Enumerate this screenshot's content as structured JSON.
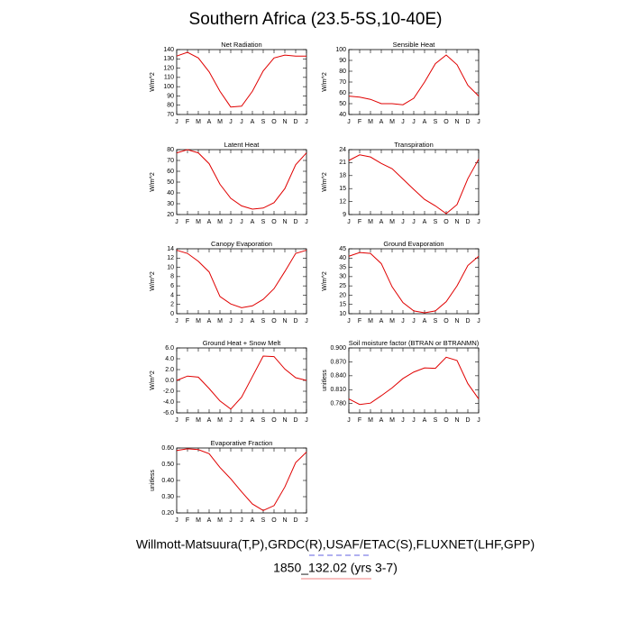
{
  "title": "Southern Africa (23.5-5S,10-40E)",
  "footer": [
    "Willmott-Matsuura(T,P),GRDC(R),USAF/ETAC(S),FLUXNET(LHF,GPP)",
    "1850_132.02 (yrs 3-7)"
  ],
  "chart_data": [
    {
      "type": "line",
      "title": "Net Radiation",
      "ylabel": "W/m^2",
      "color": "#e00000",
      "categories": [
        "J",
        "F",
        "M",
        "A",
        "M",
        "J",
        "J",
        "A",
        "S",
        "O",
        "N",
        "D",
        "J"
      ],
      "values": [
        133,
        137,
        131,
        116,
        95,
        78,
        79,
        95,
        117,
        131,
        134,
        133,
        133
      ],
      "ylim": [
        70,
        140
      ],
      "yticks": [
        70,
        80,
        90,
        100,
        110,
        120,
        130,
        140
      ]
    },
    {
      "type": "line",
      "title": "Sensible Heat",
      "ylabel": "W/m^2",
      "color": "#e00000",
      "categories": [
        "J",
        "F",
        "M",
        "A",
        "M",
        "J",
        "J",
        "A",
        "S",
        "O",
        "N",
        "D",
        "J"
      ],
      "values": [
        57,
        56,
        54,
        50,
        50,
        49,
        55,
        70,
        87,
        95,
        86,
        67,
        57
      ],
      "ylim": [
        40,
        100
      ],
      "yticks": [
        40,
        50,
        60,
        70,
        80,
        90,
        100
      ]
    },
    {
      "type": "line",
      "title": "Latent Heat",
      "ylabel": "W/m^2",
      "color": "#e00000",
      "categories": [
        "J",
        "F",
        "M",
        "A",
        "M",
        "J",
        "J",
        "A",
        "S",
        "O",
        "N",
        "D",
        "J"
      ],
      "values": [
        77,
        80,
        77,
        67,
        48,
        35,
        28,
        25,
        26,
        31,
        44,
        66,
        77
      ],
      "ylim": [
        20,
        80
      ],
      "yticks": [
        20,
        30,
        40,
        50,
        60,
        70,
        80
      ]
    },
    {
      "type": "line",
      "title": "Transpiration",
      "ylabel": "W/m^2",
      "color": "#e00000",
      "categories": [
        "J",
        "F",
        "M",
        "A",
        "M",
        "J",
        "J",
        "A",
        "S",
        "O",
        "N",
        "D",
        "J"
      ],
      "values": [
        21.5,
        22.8,
        22.3,
        20.8,
        19.6,
        17.2,
        14.8,
        12.5,
        11.0,
        9.2,
        11.3,
        17.3,
        21.8
      ],
      "ylim": [
        9,
        24
      ],
      "yticks": [
        9,
        12,
        15,
        18,
        21,
        24
      ]
    },
    {
      "type": "line",
      "title": "Canopy Evaporation",
      "ylabel": "W/m^2",
      "color": "#e00000",
      "categories": [
        "J",
        "F",
        "M",
        "A",
        "M",
        "J",
        "J",
        "A",
        "S",
        "O",
        "N",
        "D",
        "J"
      ],
      "values": [
        13.7,
        13,
        11.3,
        9,
        3.7,
        2.1,
        1.3,
        1.7,
        3.1,
        5.4,
        9.1,
        13,
        13.7
      ],
      "ylim": [
        0,
        14
      ],
      "yticks": [
        0,
        2,
        4,
        6,
        8,
        10,
        12,
        14
      ]
    },
    {
      "type": "line",
      "title": "Ground Evaporation",
      "ylabel": "W/m^2",
      "color": "#e00000",
      "categories": [
        "J",
        "F",
        "M",
        "A",
        "M",
        "J",
        "J",
        "A",
        "S",
        "O",
        "N",
        "D",
        "J"
      ],
      "values": [
        41,
        43,
        42.5,
        37,
        24.5,
        16,
        11.5,
        10.5,
        11.5,
        16.5,
        25,
        36,
        41
      ],
      "ylim": [
        10,
        45
      ],
      "yticks": [
        10,
        15,
        20,
        25,
        30,
        35,
        40,
        45
      ]
    },
    {
      "type": "line",
      "title": "Ground Heat + Snow Melt",
      "ylabel": "W/m^2",
      "color": "#e00000",
      "categories": [
        "J",
        "F",
        "M",
        "A",
        "M",
        "J",
        "J",
        "A",
        "S",
        "O",
        "N",
        "D",
        "J"
      ],
      "values": [
        0,
        0.8,
        0.6,
        -1.5,
        -3.8,
        -5.3,
        -3.1,
        0.7,
        4.5,
        4.4,
        2.1,
        0.5,
        0
      ],
      "ylim": [
        -6,
        6
      ],
      "yticks": [
        {
          "value": -6,
          "label": "-6.0"
        },
        {
          "value": -4,
          "label": "-4.0"
        },
        {
          "value": -2,
          "label": "-2.0"
        },
        {
          "value": 0,
          "label": "0.0"
        },
        {
          "value": 2,
          "label": "2.0"
        },
        {
          "value": 4,
          "label": "4.0"
        },
        {
          "value": 6,
          "label": "6.0"
        }
      ]
    },
    {
      "type": "line",
      "title": "Soil moisture factor (BTRAN or BTRANMN)",
      "ylabel": "unitless",
      "color": "#e00000",
      "categories": [
        "J",
        "F",
        "M",
        "A",
        "M",
        "J",
        "J",
        "A",
        "S",
        "O",
        "N",
        "D",
        "J"
      ],
      "values": [
        0.79,
        0.778,
        0.781,
        0.797,
        0.814,
        0.834,
        0.848,
        0.857,
        0.856,
        0.88,
        0.873,
        0.823,
        0.79
      ],
      "ylim": [
        0.76,
        0.9
      ],
      "yticks": [
        {
          "value": 0.78,
          "label": "0.780"
        },
        {
          "value": 0.81,
          "label": "0.810"
        },
        {
          "value": 0.84,
          "label": "0.840"
        },
        {
          "value": 0.87,
          "label": "0.870"
        },
        {
          "value": 0.9,
          "label": "0.900"
        }
      ]
    },
    {
      "type": "line",
      "title": "Evaporative Fraction",
      "ylabel": "unitless",
      "color": "#e00000",
      "categories": [
        "J",
        "F",
        "M",
        "A",
        "M",
        "J",
        "J",
        "A",
        "S",
        "O",
        "N",
        "D",
        "J"
      ],
      "values": [
        0.585,
        0.595,
        0.59,
        0.565,
        0.48,
        0.41,
        0.33,
        0.255,
        0.215,
        0.245,
        0.36,
        0.51,
        0.575
      ],
      "ylim": [
        0.2,
        0.6
      ],
      "yticks": [
        {
          "value": 0.2,
          "label": "0.20"
        },
        {
          "value": 0.3,
          "label": "0.30"
        },
        {
          "value": 0.4,
          "label": "0.40"
        },
        {
          "value": 0.5,
          "label": "0.50"
        },
        {
          "value": 0.6,
          "label": "0.60"
        }
      ]
    }
  ]
}
